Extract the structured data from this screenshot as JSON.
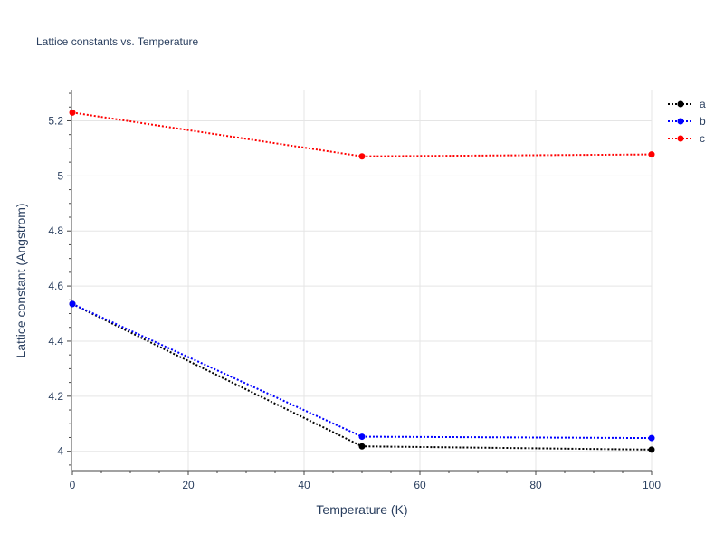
{
  "chart_data": {
    "type": "line",
    "title": "Lattice constants vs. Temperature",
    "xlabel": "Temperature (K)",
    "ylabel": "Lattice constant (Angstrom)",
    "xlim": [
      0,
      100
    ],
    "ylim": [
      3.93,
      5.31
    ],
    "x_ticks": [
      0,
      20,
      40,
      60,
      80,
      100
    ],
    "y_ticks": [
      4,
      4.2,
      4.4,
      4.6,
      4.8,
      5,
      5.2
    ],
    "x_tick_labels": [
      "0",
      "20",
      "40",
      "60",
      "80",
      "100"
    ],
    "y_tick_labels": [
      "4",
      "4.2",
      "4.4",
      "4.6",
      "4.8",
      "5",
      "5.2"
    ],
    "grid": true,
    "legend_position": "top-right",
    "line_style": "dotted",
    "x": [
      0,
      50,
      100
    ],
    "series": [
      {
        "name": "a",
        "color": "#000000",
        "values": [
          4.535,
          4.018,
          4.006
        ]
      },
      {
        "name": "b",
        "color": "#0000ff",
        "values": [
          4.535,
          4.053,
          4.048
        ]
      },
      {
        "name": "c",
        "color": "#ff0000",
        "values": [
          5.23,
          5.071,
          5.078
        ]
      }
    ]
  }
}
